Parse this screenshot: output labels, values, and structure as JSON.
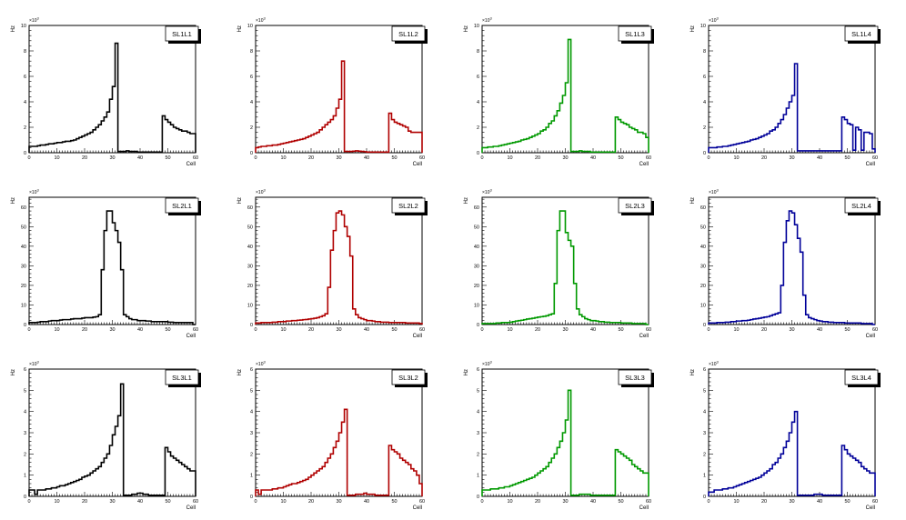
{
  "common": {
    "ylabel": "Hz",
    "xlabel": "Cell",
    "x_ticks": [
      "0",
      "10",
      "20",
      "30",
      "40",
      "50",
      "60"
    ]
  },
  "chart_data": [
    {
      "type": "bar",
      "title": "SL1L1",
      "color": "#000000",
      "exponent": "3",
      "xlim": [
        0,
        60
      ],
      "ylim": [
        0,
        10
      ],
      "y_ticks": [
        "0",
        "2",
        "4",
        "6",
        "8",
        "10"
      ],
      "values": [
        0.5,
        0.5,
        0.5,
        0.55,
        0.6,
        0.6,
        0.65,
        0.7,
        0.7,
        0.75,
        0.8,
        0.8,
        0.85,
        0.9,
        0.9,
        0.95,
        1.0,
        1.1,
        1.2,
        1.3,
        1.4,
        1.5,
        1.6,
        1.8,
        2.0,
        2.2,
        2.5,
        2.8,
        3.2,
        4.2,
        5.2,
        8.6,
        0.1,
        0.1,
        0.1,
        0.15,
        0.1,
        0.1,
        0.1,
        0.05,
        0.05,
        0.05,
        0.05,
        0.05,
        0.05,
        0.05,
        0.05,
        0.05,
        2.9,
        2.6,
        2.4,
        2.2,
        2.0,
        1.9,
        1.8,
        1.7,
        1.7,
        1.6,
        1.5,
        1.5
      ]
    },
    {
      "type": "bar",
      "title": "SL1L2",
      "color": "#b00000",
      "exponent": "3",
      "xlim": [
        0,
        60
      ],
      "ylim": [
        0,
        10
      ],
      "y_ticks": [
        "0",
        "2",
        "4",
        "6",
        "8",
        "10"
      ],
      "values": [
        0.4,
        0.45,
        0.5,
        0.5,
        0.55,
        0.55,
        0.6,
        0.6,
        0.65,
        0.7,
        0.75,
        0.8,
        0.85,
        0.9,
        0.95,
        1.0,
        1.05,
        1.1,
        1.2,
        1.3,
        1.4,
        1.5,
        1.6,
        1.8,
        2.0,
        2.2,
        2.4,
        2.6,
        2.9,
        3.5,
        4.2,
        7.2,
        0.1,
        0.1,
        0.1,
        0.12,
        0.15,
        0.12,
        0.1,
        0.08,
        0.05,
        0.05,
        0.05,
        0.05,
        0.05,
        0.05,
        0.05,
        0.05,
        3.1,
        2.6,
        2.4,
        2.3,
        2.2,
        2.1,
        2.0,
        1.7,
        1.6,
        1.6,
        1.6,
        1.6
      ]
    },
    {
      "type": "bar",
      "title": "SL1L3",
      "color": "#009900",
      "exponent": "3",
      "xlim": [
        0,
        60
      ],
      "ylim": [
        0,
        10
      ],
      "y_ticks": [
        "0",
        "2",
        "4",
        "6",
        "8",
        "10"
      ],
      "values": [
        0.4,
        0.4,
        0.45,
        0.45,
        0.5,
        0.5,
        0.55,
        0.6,
        0.65,
        0.7,
        0.75,
        0.8,
        0.85,
        0.9,
        1.0,
        1.05,
        1.1,
        1.2,
        1.3,
        1.4,
        1.5,
        1.7,
        1.8,
        2.0,
        2.3,
        2.5,
        2.9,
        3.3,
        3.9,
        4.5,
        5.5,
        8.9,
        0.1,
        0.1,
        0.1,
        0.15,
        0.1,
        0.1,
        0.1,
        0.05,
        0.05,
        0.05,
        0.05,
        0.05,
        0.05,
        0.05,
        0.05,
        0.05,
        2.8,
        2.6,
        2.4,
        2.3,
        2.2,
        2.0,
        1.9,
        1.8,
        1.6,
        1.6,
        1.5,
        1.2
      ]
    },
    {
      "type": "bar",
      "title": "SL1L4",
      "color": "#000099",
      "exponent": "3",
      "xlim": [
        0,
        60
      ],
      "ylim": [
        0,
        10
      ],
      "y_ticks": [
        "0",
        "2",
        "4",
        "6",
        "8",
        "10"
      ],
      "values": [
        0.4,
        0.4,
        0.4,
        0.45,
        0.45,
        0.5,
        0.5,
        0.55,
        0.6,
        0.65,
        0.7,
        0.75,
        0.8,
        0.85,
        0.9,
        1.0,
        1.05,
        1.1,
        1.2,
        1.3,
        1.4,
        1.5,
        1.7,
        1.8,
        2.0,
        2.3,
        2.6,
        3.0,
        3.5,
        4.0,
        4.5,
        7.0,
        0.15,
        0.15,
        0.15,
        0.15,
        0.15,
        0.15,
        0.15,
        0.15,
        0.15,
        0.15,
        0.15,
        0.15,
        0.15,
        0.15,
        0.15,
        0.15,
        2.8,
        2.6,
        2.3,
        2.2,
        0.2,
        2.0,
        1.8,
        0.2,
        1.6,
        1.6,
        1.5,
        0.3
      ]
    },
    {
      "type": "bar",
      "title": "SL2L1",
      "color": "#000000",
      "exponent": "3",
      "xlim": [
        0,
        60
      ],
      "ylim": [
        0,
        65
      ],
      "y_ticks": [
        "0",
        "10",
        "20",
        "30",
        "40",
        "50",
        "60"
      ],
      "values": [
        1.0,
        1.0,
        1.0,
        1.2,
        1.5,
        1.5,
        1.5,
        1.8,
        2.0,
        2.0,
        2.0,
        2.3,
        2.5,
        2.5,
        2.5,
        2.8,
        3.0,
        3.0,
        3.0,
        3.3,
        3.5,
        3.5,
        3.5,
        3.8,
        4.0,
        5.0,
        28.0,
        48.0,
        58.0,
        58.0,
        52.0,
        48.0,
        42.0,
        28.0,
        5.0,
        4.0,
        3.0,
        2.5,
        2.5,
        2.0,
        2.0,
        2.0,
        1.8,
        1.8,
        1.5,
        1.5,
        1.5,
        1.5,
        1.5,
        1.5,
        1.2,
        1.2,
        1.0,
        1.0,
        1.0,
        1.0,
        1.0,
        1.0,
        1.0,
        0.0
      ]
    },
    {
      "type": "bar",
      "title": "SL2L2",
      "color": "#b00000",
      "exponent": "3",
      "xlim": [
        0,
        60
      ],
      "ylim": [
        0,
        65
      ],
      "y_ticks": [
        "0",
        "10",
        "20",
        "30",
        "40",
        "50",
        "60"
      ],
      "values": [
        0.8,
        0.8,
        1.0,
        1.0,
        1.0,
        1.0,
        1.2,
        1.2,
        1.5,
        1.5,
        1.5,
        1.8,
        1.8,
        2.0,
        2.0,
        2.2,
        2.3,
        2.5,
        2.6,
        2.8,
        3.0,
        3.2,
        3.5,
        4.0,
        4.5,
        5.5,
        19.0,
        38.0,
        48.0,
        57.0,
        58.0,
        56.0,
        50.0,
        45.0,
        35.0,
        8.0,
        5.0,
        3.5,
        3.0,
        2.5,
        2.0,
        2.0,
        1.8,
        1.5,
        1.5,
        1.2,
        1.2,
        1.2,
        1.0,
        1.0,
        1.0,
        1.0,
        1.0,
        1.0,
        0.8,
        0.8,
        0.8,
        0.8,
        0.8,
        0.5
      ]
    },
    {
      "type": "bar",
      "title": "SL2L3",
      "color": "#009900",
      "exponent": "3",
      "xlim": [
        0,
        60
      ],
      "ylim": [
        0,
        65
      ],
      "y_ticks": [
        "0",
        "10",
        "20",
        "30",
        "40",
        "50",
        "60"
      ],
      "values": [
        0.5,
        0.5,
        0.5,
        0.5,
        0.5,
        0.8,
        0.8,
        1.0,
        1.0,
        1.0,
        1.2,
        1.5,
        1.8,
        2.0,
        2.2,
        2.5,
        2.8,
        3.0,
        3.2,
        3.5,
        3.8,
        4.0,
        4.2,
        4.5,
        5.0,
        5.5,
        21.0,
        48.0,
        58.0,
        58.0,
        47.0,
        43.0,
        40.0,
        21.0,
        8.0,
        5.0,
        4.0,
        3.0,
        2.5,
        2.0,
        2.0,
        1.8,
        1.5,
        1.5,
        1.2,
        1.2,
        1.0,
        1.0,
        1.0,
        1.0,
        0.8,
        0.8,
        0.8,
        0.8,
        0.5,
        0.5,
        0.5,
        0.5,
        0.5,
        0.0
      ]
    },
    {
      "type": "bar",
      "title": "SL2L4",
      "color": "#000099",
      "exponent": "3",
      "xlim": [
        0,
        60
      ],
      "ylim": [
        0,
        65
      ],
      "y_ticks": [
        "0",
        "10",
        "20",
        "30",
        "40",
        "50",
        "60"
      ],
      "values": [
        0.8,
        0.8,
        0.8,
        1.0,
        1.0,
        1.0,
        1.2,
        1.2,
        1.5,
        1.5,
        1.8,
        1.8,
        2.0,
        2.0,
        2.2,
        2.5,
        2.8,
        3.0,
        3.2,
        3.5,
        3.8,
        4.0,
        4.5,
        5.0,
        5.5,
        6.0,
        20.0,
        42.0,
        53.0,
        58.0,
        57.0,
        51.0,
        44.0,
        37.0,
        15.0,
        5.0,
        3.5,
        3.0,
        2.5,
        2.0,
        1.8,
        1.5,
        1.5,
        1.2,
        1.2,
        1.0,
        1.0,
        1.0,
        1.0,
        0.8,
        0.8,
        0.8,
        0.8,
        0.8,
        0.8,
        0.5,
        0.5,
        0.5,
        0.5,
        0.0
      ]
    },
    {
      "type": "bar",
      "title": "SL3L1",
      "color": "#000000",
      "exponent": "3",
      "xlim": [
        0,
        60
      ],
      "ylim": [
        0,
        6
      ],
      "y_ticks": [
        "0",
        "1",
        "2",
        "3",
        "4",
        "5",
        "6"
      ],
      "values": [
        0.3,
        0.3,
        0.1,
        0.3,
        0.3,
        0.3,
        0.35,
        0.35,
        0.4,
        0.4,
        0.45,
        0.5,
        0.5,
        0.55,
        0.6,
        0.65,
        0.7,
        0.75,
        0.8,
        0.9,
        0.95,
        1.0,
        1.1,
        1.2,
        1.3,
        1.4,
        1.6,
        1.8,
        2.0,
        2.4,
        2.9,
        3.3,
        3.8,
        5.3,
        0.05,
        0.05,
        0.05,
        0.1,
        0.1,
        0.15,
        0.15,
        0.1,
        0.1,
        0.05,
        0.05,
        0.05,
        0.05,
        0.05,
        0.05,
        2.3,
        2.1,
        1.9,
        1.8,
        1.7,
        1.6,
        1.5,
        1.4,
        1.3,
        1.2,
        1.2
      ]
    },
    {
      "type": "bar",
      "title": "SL3L2",
      "color": "#b00000",
      "exponent": "3",
      "xlim": [
        0,
        60
      ],
      "ylim": [
        0,
        6
      ],
      "y_ticks": [
        "0",
        "1",
        "2",
        "3",
        "4",
        "5",
        "6"
      ],
      "values": [
        0.3,
        0.1,
        0.3,
        0.3,
        0.3,
        0.3,
        0.35,
        0.35,
        0.4,
        0.4,
        0.45,
        0.5,
        0.55,
        0.6,
        0.6,
        0.65,
        0.7,
        0.75,
        0.8,
        0.9,
        1.0,
        1.1,
        1.2,
        1.3,
        1.4,
        1.6,
        1.8,
        2.0,
        2.3,
        2.6,
        3.0,
        3.5,
        4.1,
        0.05,
        0.05,
        0.05,
        0.1,
        0.1,
        0.1,
        0.15,
        0.1,
        0.1,
        0.1,
        0.05,
        0.05,
        0.05,
        0.05,
        0.05,
        2.4,
        2.2,
        2.1,
        2.0,
        1.8,
        1.7,
        1.6,
        1.5,
        1.3,
        1.2,
        1.0,
        0.6
      ]
    },
    {
      "type": "bar",
      "title": "SL3L3",
      "color": "#009900",
      "exponent": "3",
      "xlim": [
        0,
        60
      ],
      "ylim": [
        0,
        6
      ],
      "y_ticks": [
        "0",
        "1",
        "2",
        "3",
        "4",
        "5",
        "6"
      ],
      "values": [
        0.3,
        0.3,
        0.3,
        0.35,
        0.35,
        0.35,
        0.4,
        0.4,
        0.45,
        0.45,
        0.5,
        0.55,
        0.6,
        0.65,
        0.7,
        0.75,
        0.8,
        0.85,
        0.9,
        1.0,
        1.1,
        1.2,
        1.3,
        1.4,
        1.6,
        1.8,
        2.0,
        2.3,
        2.6,
        3.0,
        3.6,
        5.0,
        0.05,
        0.05,
        0.05,
        0.1,
        0.1,
        0.1,
        0.1,
        0.05,
        0.05,
        0.05,
        0.05,
        0.05,
        0.05,
        0.05,
        0.05,
        0.05,
        2.2,
        2.1,
        2.0,
        1.9,
        1.8,
        1.7,
        1.5,
        1.4,
        1.3,
        1.2,
        1.1,
        1.1
      ]
    },
    {
      "type": "bar",
      "title": "SL3L4",
      "color": "#000099",
      "exponent": "3",
      "xlim": [
        0,
        60
      ],
      "ylim": [
        0,
        6
      ],
      "y_ticks": [
        "0",
        "1",
        "2",
        "3",
        "4",
        "5",
        "6"
      ],
      "values": [
        0.2,
        0.2,
        0.3,
        0.3,
        0.3,
        0.35,
        0.35,
        0.4,
        0.4,
        0.45,
        0.5,
        0.55,
        0.6,
        0.65,
        0.7,
        0.75,
        0.8,
        0.85,
        0.9,
        1.0,
        1.1,
        1.2,
        1.3,
        1.5,
        1.6,
        1.8,
        2.0,
        2.3,
        2.6,
        3.0,
        3.5,
        4.0,
        0.05,
        0.05,
        0.05,
        0.05,
        0.05,
        0.05,
        0.1,
        0.1,
        0.1,
        0.05,
        0.05,
        0.05,
        0.05,
        0.05,
        0.05,
        0.05,
        2.4,
        2.2,
        2.0,
        1.9,
        1.8,
        1.7,
        1.6,
        1.4,
        1.3,
        1.2,
        1.1,
        1.1
      ]
    }
  ]
}
